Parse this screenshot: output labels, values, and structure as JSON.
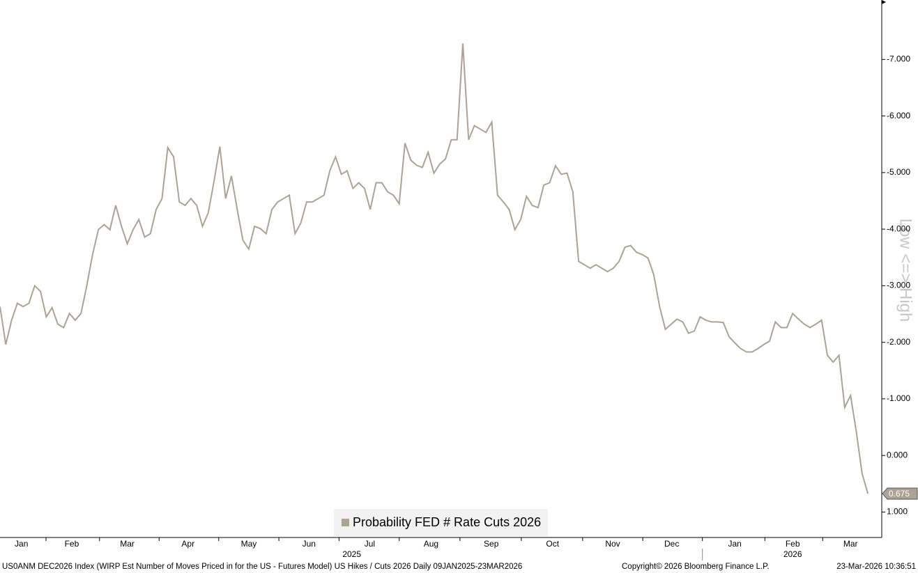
{
  "chart_data": {
    "type": "line",
    "series": [
      {
        "name": "Probability FED # Rate Cuts 2026",
        "color": "#aca295",
        "values": [
          -2.63,
          -1.96,
          -2.39,
          -2.69,
          -2.63,
          -2.69,
          -3.0,
          -2.9,
          -2.45,
          -2.61,
          -2.32,
          -2.26,
          -2.51,
          -2.39,
          -2.51,
          -3.0,
          -3.55,
          -3.99,
          -4.08,
          -3.99,
          -4.42,
          -4.05,
          -3.74,
          -3.99,
          -4.17,
          -3.86,
          -3.92,
          -4.35,
          -4.54,
          -5.44,
          -5.28,
          -4.48,
          -4.42,
          -4.54,
          -4.42,
          -4.05,
          -4.29,
          -4.85,
          -5.46,
          -4.54,
          -4.94,
          -4.35,
          -3.8,
          -3.65,
          -4.05,
          -4.01,
          -3.92,
          -4.35,
          -4.48,
          -4.54,
          -4.6,
          -3.92,
          -4.11,
          -4.48,
          -4.48,
          -4.54,
          -4.6,
          -5.03,
          -5.28,
          -4.97,
          -5.03,
          -4.72,
          -4.82,
          -4.72,
          -4.35,
          -4.82,
          -4.82,
          -4.66,
          -4.6,
          -4.45,
          -5.52,
          -5.22,
          -5.13,
          -5.09,
          -5.36,
          -4.99,
          -5.15,
          -5.24,
          -5.58,
          -5.58,
          -7.28,
          -5.58,
          -5.83,
          -5.77,
          -5.71,
          -5.89,
          -4.6,
          -4.48,
          -4.35,
          -3.99,
          -4.17,
          -4.58,
          -4.42,
          -4.38,
          -4.78,
          -4.82,
          -5.12,
          -4.97,
          -4.99,
          -4.66,
          -3.43,
          -3.37,
          -3.31,
          -3.37,
          -3.31,
          -3.25,
          -3.31,
          -3.43,
          -3.68,
          -3.71,
          -3.59,
          -3.55,
          -3.49,
          -3.19,
          -2.63,
          -2.23,
          -2.32,
          -2.41,
          -2.36,
          -2.16,
          -2.2,
          -2.45,
          -2.39,
          -2.36,
          -2.36,
          -2.35,
          -2.1,
          -1.99,
          -1.89,
          -1.83,
          -1.83,
          -1.89,
          -1.96,
          -2.02,
          -2.36,
          -2.26,
          -2.26,
          -2.51,
          -2.41,
          -2.32,
          -2.26,
          -2.32,
          -2.39,
          -1.77,
          -1.65,
          -1.77,
          -0.85,
          -1.06,
          -0.42,
          0.32,
          0.675
        ]
      }
    ],
    "xlim": [
      0,
      152.4
    ],
    "xticks": [
      7.95,
      17.2,
      27.5,
      37.8,
      48.2,
      58.6,
      69.0,
      79.5,
      90.1,
      100.7,
      111.1,
      121.4,
      132.2,
      142.2
    ],
    "month_labels": [
      {
        "value": 3.7,
        "label": "Jan"
      },
      {
        "value": 12.4,
        "label": "Feb"
      },
      {
        "value": 22.0,
        "label": "Mar"
      },
      {
        "value": 32.5,
        "label": "Apr"
      },
      {
        "value": 43.0,
        "label": "May"
      },
      {
        "value": 53.4,
        "label": "Jun"
      },
      {
        "value": 63.9,
        "label": "Jul"
      },
      {
        "value": 74.5,
        "label": "Aug"
      },
      {
        "value": 84.9,
        "label": "Sep"
      },
      {
        "value": 95.5,
        "label": "Oct"
      },
      {
        "value": 105.9,
        "label": "Nov"
      },
      {
        "value": 116.1,
        "label": "Dec"
      },
      {
        "value": 127.0,
        "label": "Jan"
      },
      {
        "value": 137.0,
        "label": "Feb"
      },
      {
        "value": 147.0,
        "label": "Mar"
      }
    ],
    "year_labels": [
      {
        "value": 60.8,
        "label": "2025"
      },
      {
        "value": 137.0,
        "label": "2026"
      }
    ],
    "year_separator": 121.4,
    "ylim": [
      1.45,
      -8.05
    ],
    "yticks": [
      {
        "value": -7,
        "label": "-7.000"
      },
      {
        "value": -6,
        "label": "-6.000"
      },
      {
        "value": -5,
        "label": "-5.000"
      },
      {
        "value": -4,
        "label": "-4.000"
      },
      {
        "value": -3,
        "label": "-3.000"
      },
      {
        "value": -2,
        "label": "-2.000"
      },
      {
        "value": -1,
        "label": "-1.000"
      },
      {
        "value": 0,
        "label": "0.000"
      },
      {
        "value": 1,
        "label": "1.000"
      }
    ],
    "y_label": "Low <=> High",
    "footer_left": "US0ANM DEC2026 Index (WIRP Est Number of Moves Priced in for the US - Futures Model) US Hikes / Cuts 2026 Daily 09JAN2025-23MAR2026",
    "footer_copyright": "Copyright© 2026 Bloomberg Finance L.P.",
    "footer_date": "23-Mar-2026 10:36:51"
  }
}
